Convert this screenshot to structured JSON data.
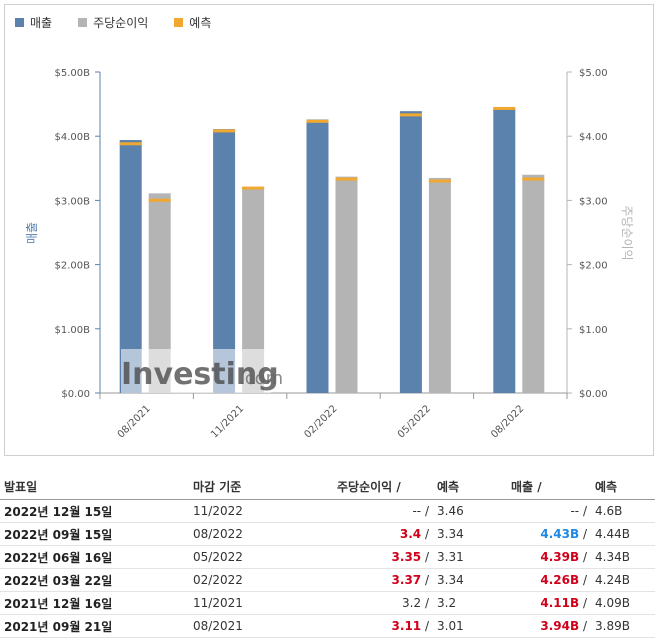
{
  "legend": {
    "revenue": "매출",
    "eps": "주당순이익",
    "forecast": "예측"
  },
  "colors": {
    "revenue": "#5b82ad",
    "eps": "#b4b4b4",
    "forecast": "#f0a830",
    "beat": "#d0021b",
    "blue_value": "#1e88e5"
  },
  "watermark": {
    "brand": "Investing",
    "suffix": ".com"
  },
  "chart_data": {
    "type": "bar",
    "categories": [
      "08/2021",
      "11/2021",
      "02/2022",
      "05/2022",
      "08/2022"
    ],
    "series": [
      {
        "name": "매출",
        "axis": "left",
        "values": [
          3.94,
          4.11,
          4.26,
          4.39,
          4.43
        ],
        "forecast": [
          3.89,
          4.09,
          4.24,
          4.34,
          4.44
        ]
      },
      {
        "name": "주당순이익",
        "axis": "right",
        "values": [
          3.11,
          3.2,
          3.37,
          3.35,
          3.4
        ],
        "forecast": [
          3.01,
          3.2,
          3.34,
          3.31,
          3.34
        ]
      }
    ],
    "ylabel": "매출",
    "y2label": "주당순이익",
    "ylim": [
      0,
      5
    ],
    "y2lim": [
      0,
      5
    ],
    "yticks": [
      "$0.00",
      "$1.00B",
      "$2.00B",
      "$3.00B",
      "$4.00B",
      "$5.00B"
    ],
    "y2ticks": [
      "$0.00",
      "$1.00",
      "$2.00",
      "$3.00",
      "$4.00",
      "$5.00"
    ],
    "legend_position": "top-left",
    "grid": false
  },
  "table": {
    "headers": {
      "date": "발표일",
      "period": "마감 기준",
      "eps": "주당순이익",
      "eps_forecast": "예측",
      "revenue": "매출",
      "revenue_forecast": "예측",
      "sep": "/"
    },
    "rows": [
      {
        "date": "2022년 12월 15일",
        "period": "11/2022",
        "eps": "--",
        "eps_style": "",
        "eps_forecast": "3.46",
        "revenue": "--",
        "revenue_style": "",
        "revenue_forecast": "4.6B"
      },
      {
        "date": "2022년 09월 15일",
        "period": "08/2022",
        "eps": "3.4",
        "eps_style": "red",
        "eps_forecast": "3.34",
        "revenue": "4.43B",
        "revenue_style": "blue",
        "revenue_forecast": "4.44B"
      },
      {
        "date": "2022년 06월 16일",
        "period": "05/2022",
        "eps": "3.35",
        "eps_style": "red",
        "eps_forecast": "3.31",
        "revenue": "4.39B",
        "revenue_style": "red",
        "revenue_forecast": "4.34B"
      },
      {
        "date": "2022년 03월 22일",
        "period": "02/2022",
        "eps": "3.37",
        "eps_style": "red",
        "eps_forecast": "3.34",
        "revenue": "4.26B",
        "revenue_style": "red",
        "revenue_forecast": "4.24B"
      },
      {
        "date": "2021년 12월 16일",
        "period": "11/2021",
        "eps": "3.2",
        "eps_style": "",
        "eps_forecast": "3.2",
        "revenue": "4.11B",
        "revenue_style": "red",
        "revenue_forecast": "4.09B"
      },
      {
        "date": "2021년 09월 21일",
        "period": "08/2021",
        "eps": "3.11",
        "eps_style": "red",
        "eps_forecast": "3.01",
        "revenue": "3.94B",
        "revenue_style": "red",
        "revenue_forecast": "3.89B"
      }
    ]
  }
}
